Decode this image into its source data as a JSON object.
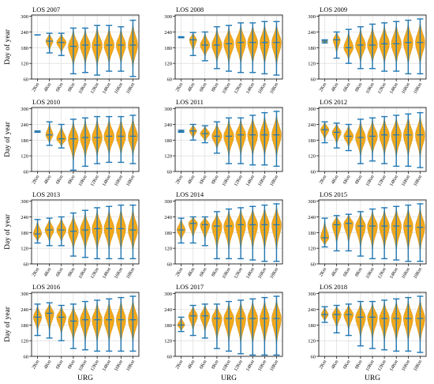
{
  "figure": {
    "ylabel": "Day of year",
    "xlabel": "URG",
    "violin_color": "#f0a81c",
    "line_color": "#1f77b4",
    "categories": [
      "2Km",
      "4Km",
      "6Km",
      "8Km",
      "10Km",
      "12Km",
      "14Km",
      "16Km",
      "18Km"
    ],
    "yticks": [
      60,
      120,
      180,
      240,
      300
    ],
    "ylim": [
      60,
      305
    ]
  },
  "chart_data": [
    {
      "type": "violin",
      "title": "LOS 2007",
      "present": [
        0,
        1,
        2,
        3,
        4,
        5,
        6,
        7,
        8
      ],
      "min": [
        229,
        160,
        150,
        80,
        85,
        75,
        90,
        90,
        70
      ],
      "max": [
        229,
        235,
        235,
        255,
        255,
        265,
        265,
        260,
        285
      ],
      "center": [
        229,
        205,
        200,
        185,
        190,
        190,
        190,
        190,
        190
      ],
      "widths": [
        0,
        0.6,
        0.8,
        0.85,
        0.85,
        0.85,
        0.85,
        0.8,
        0.8
      ]
    },
    {
      "type": "violin",
      "title": "LOS 2008",
      "present": [
        0,
        1,
        2,
        3,
        4,
        5,
        6,
        7,
        8
      ],
      "min": [
        218,
        150,
        130,
        100,
        90,
        85,
        85,
        80,
        75
      ],
      "max": [
        222,
        238,
        240,
        260,
        265,
        275,
        275,
        280,
        280
      ],
      "center": [
        220,
        210,
        190,
        190,
        195,
        200,
        200,
        200,
        200
      ],
      "widths": [
        0,
        0.6,
        0.8,
        0.85,
        0.85,
        0.85,
        0.85,
        0.8,
        0.8
      ]
    },
    {
      "type": "violin",
      "title": "LOS 2009",
      "present": [
        0,
        1,
        2,
        3,
        4,
        5,
        6,
        7,
        8
      ],
      "min": [
        198,
        140,
        120,
        100,
        100,
        90,
        90,
        80,
        80
      ],
      "max": [
        210,
        240,
        250,
        260,
        270,
        275,
        280,
        285,
        290
      ],
      "center": [
        205,
        210,
        180,
        190,
        190,
        195,
        195,
        200,
        200
      ],
      "widths": [
        0.5,
        0.6,
        0.8,
        0.85,
        0.85,
        0.85,
        0.85,
        0.8,
        0.8
      ]
    },
    {
      "type": "violin",
      "title": "LOS 2010",
      "present": [
        0,
        1,
        2,
        3,
        4,
        5,
        6,
        7,
        8
      ],
      "min": [
        210,
        160,
        150,
        65,
        80,
        90,
        95,
        95,
        90
      ],
      "max": [
        215,
        250,
        240,
        260,
        265,
        270,
        270,
        270,
        275
      ],
      "center": [
        210,
        200,
        185,
        185,
        190,
        190,
        195,
        195,
        195
      ],
      "widths": [
        0.4,
        0.6,
        0.8,
        0.85,
        0.85,
        0.85,
        0.85,
        0.8,
        0.8
      ]
    },
    {
      "type": "violin",
      "title": "LOS 2011",
      "present": [
        0,
        1,
        2,
        3,
        4,
        5,
        6,
        7,
        8
      ],
      "min": [
        210,
        180,
        170,
        130,
        90,
        90,
        85,
        85,
        80
      ],
      "max": [
        218,
        240,
        235,
        250,
        265,
        265,
        275,
        285,
        290
      ],
      "center": [
        213,
        215,
        205,
        195,
        195,
        200,
        200,
        200,
        200
      ],
      "widths": [
        0.4,
        0.6,
        0.8,
        0.85,
        0.85,
        0.85,
        0.85,
        0.8,
        0.8
      ]
    },
    {
      "type": "violin",
      "title": "LOS 2012",
      "present": [
        0,
        1,
        2,
        3,
        4,
        5,
        6,
        7,
        8
      ],
      "min": [
        170,
        150,
        140,
        90,
        100,
        90,
        80,
        80,
        75
      ],
      "max": [
        250,
        245,
        240,
        260,
        265,
        270,
        275,
        280,
        285
      ],
      "center": [
        220,
        210,
        195,
        190,
        195,
        200,
        200,
        200,
        200
      ],
      "widths": [
        0.7,
        0.75,
        0.8,
        0.85,
        0.85,
        0.85,
        0.85,
        0.8,
        0.8
      ]
    },
    {
      "type": "violin",
      "title": "LOS 2013",
      "present": [
        0,
        1,
        2,
        3,
        4,
        5,
        6,
        7,
        8
      ],
      "min": [
        140,
        130,
        130,
        90,
        85,
        80,
        80,
        80,
        80
      ],
      "max": [
        230,
        235,
        240,
        255,
        265,
        275,
        280,
        285,
        285
      ],
      "center": [
        175,
        190,
        190,
        185,
        190,
        195,
        195,
        195,
        190
      ],
      "widths": [
        0.7,
        0.75,
        0.8,
        0.85,
        0.85,
        0.85,
        0.85,
        0.8,
        0.8
      ]
    },
    {
      "type": "violin",
      "title": "LOS 2014",
      "present": [
        0,
        1,
        2,
        3,
        4,
        5,
        6,
        7,
        8
      ],
      "min": [
        140,
        140,
        130,
        80,
        80,
        80,
        75,
        70,
        70
      ],
      "max": [
        235,
        240,
        240,
        260,
        270,
        275,
        280,
        285,
        290
      ],
      "center": [
        190,
        215,
        210,
        205,
        205,
        210,
        210,
        210,
        210
      ],
      "widths": [
        0.7,
        0.75,
        0.8,
        0.85,
        0.85,
        0.85,
        0.85,
        0.8,
        0.8
      ]
    },
    {
      "type": "violin",
      "title": "LOS 2015",
      "present": [
        0,
        1,
        2,
        3,
        4,
        5,
        6,
        7,
        8
      ],
      "min": [
        125,
        110,
        110,
        90,
        80,
        80,
        75,
        70,
        70
      ],
      "max": [
        235,
        245,
        250,
        260,
        270,
        275,
        280,
        285,
        290
      ],
      "center": [
        160,
        210,
        215,
        205,
        205,
        205,
        205,
        205,
        200
      ],
      "widths": [
        0.7,
        0.75,
        0.8,
        0.85,
        0.85,
        0.85,
        0.85,
        0.8,
        0.8
      ]
    },
    {
      "type": "violin",
      "title": "LOS 2016",
      "present": [
        0,
        1,
        2,
        3,
        4,
        5,
        6,
        7,
        8
      ],
      "min": [
        140,
        130,
        120,
        90,
        85,
        80,
        80,
        80,
        80
      ],
      "max": [
        260,
        265,
        255,
        260,
        270,
        275,
        280,
        285,
        290
      ],
      "center": [
        210,
        225,
        210,
        195,
        200,
        200,
        200,
        200,
        200
      ],
      "widths": [
        0.7,
        0.75,
        0.8,
        0.85,
        0.85,
        0.85,
        0.85,
        0.8,
        0.8
      ]
    },
    {
      "type": "violin",
      "title": "LOS 2017",
      "present": [
        0,
        1,
        2,
        3,
        4,
        5,
        6,
        7,
        8
      ],
      "min": [
        155,
        140,
        130,
        90,
        80,
        70,
        65,
        65,
        65
      ],
      "max": [
        210,
        255,
        260,
        260,
        270,
        275,
        280,
        285,
        290
      ],
      "center": [
        180,
        215,
        215,
        205,
        205,
        205,
        205,
        205,
        205
      ],
      "widths": [
        0.6,
        0.75,
        0.8,
        0.85,
        0.85,
        0.85,
        0.85,
        0.8,
        0.8
      ]
    },
    {
      "type": "violin",
      "title": "LOS 2018",
      "present": [
        0,
        1,
        2,
        3,
        4,
        5,
        6,
        7,
        8
      ],
      "min": [
        190,
        150,
        140,
        100,
        90,
        85,
        80,
        80,
        75
      ],
      "max": [
        250,
        255,
        260,
        270,
        270,
        275,
        280,
        285,
        290
      ],
      "center": [
        220,
        220,
        220,
        210,
        210,
        205,
        205,
        205,
        205
      ],
      "widths": [
        0.6,
        0.75,
        0.8,
        0.85,
        0.85,
        0.85,
        0.85,
        0.8,
        0.8
      ]
    }
  ]
}
